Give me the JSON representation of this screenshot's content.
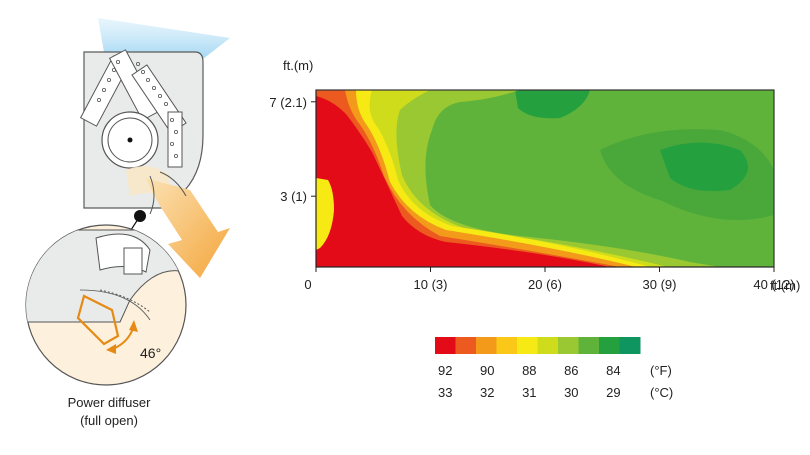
{
  "illustration": {
    "angle_label": "46°",
    "caption_line1": "Power diffuser",
    "caption_line2": "(full open)"
  },
  "chart_data": {
    "type": "heatmap",
    "title": "",
    "x_unit_label": "ft.(m)",
    "y_unit_label": "ft.(m)",
    "x_ticks": [
      "0",
      "10 (3)",
      "20 (6)",
      "30 (9)",
      "40 (12)"
    ],
    "y_ticks": [
      "3 (1)",
      "7 (2.1)"
    ],
    "x_range_ft": [
      0,
      40
    ],
    "y_range_ft": [
      0,
      7.5
    ],
    "legend": {
      "colors": [
        "#e30b17",
        "#ec5a1f",
        "#f39a1b",
        "#fbc818",
        "#f7ea14",
        "#cfdc1c",
        "#99c832",
        "#5fb33a",
        "#25a03f",
        "#0f9660"
      ],
      "fahrenheit": [
        "92",
        "90",
        "88",
        "86",
        "84"
      ],
      "celsius": [
        "33",
        "32",
        "31",
        "30",
        "29"
      ],
      "unit_f": "(°F)",
      "unit_c": "(°C)"
    }
  }
}
